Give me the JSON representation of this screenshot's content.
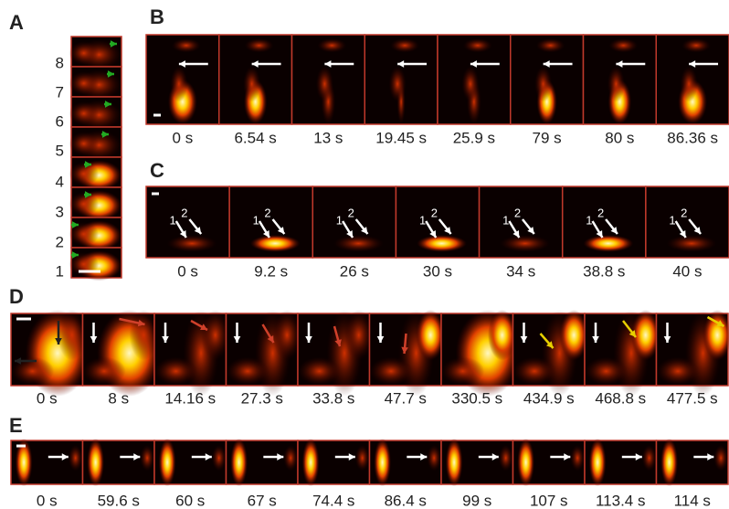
{
  "panels": {
    "A": {
      "label": "A",
      "rows": [
        "8",
        "7",
        "6",
        "5",
        "4",
        "3",
        "2",
        "1"
      ]
    },
    "B": {
      "label": "B",
      "times": [
        "0 s",
        "6.54 s",
        "13 s",
        "19.45 s",
        "25.9 s",
        "79 s",
        "80 s",
        "86.36 s"
      ]
    },
    "C": {
      "label": "C",
      "times": [
        "0 s",
        "9.2 s",
        "26 s",
        "30 s",
        "34 s",
        "38.8 s",
        "40 s"
      ],
      "arrow_labels": [
        "1",
        "2"
      ]
    },
    "D": {
      "label": "D",
      "times": [
        "0 s",
        "8 s",
        "14.16 s",
        "27.3 s",
        "33.8 s",
        "47.7 s",
        "330.5 s",
        "434.9 s",
        "468.8 s",
        "477.5 s"
      ]
    },
    "E": {
      "label": "E",
      "times": [
        "0 s",
        "59.6 s",
        "60 s",
        "67 s",
        "74.4 s",
        "86.4 s",
        "99 s",
        "107 s",
        "113.4 s",
        "114 s"
      ]
    }
  }
}
